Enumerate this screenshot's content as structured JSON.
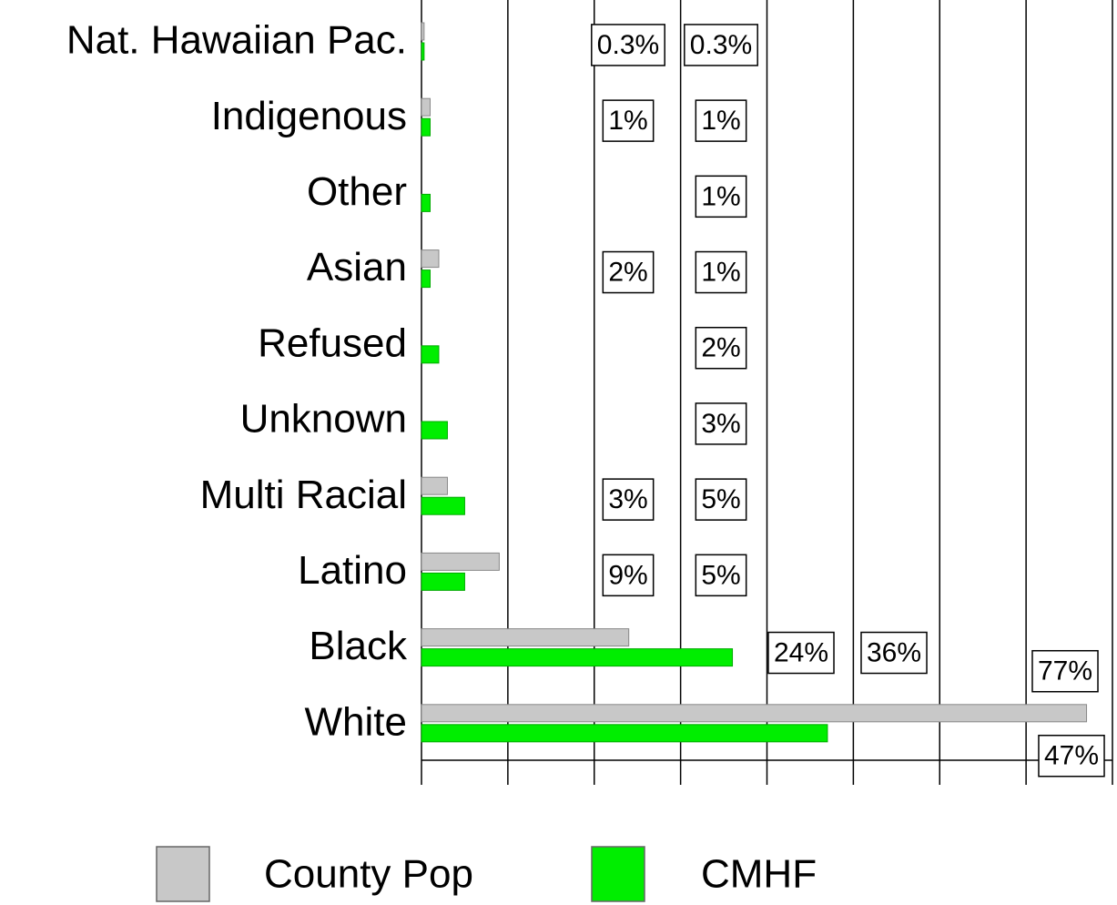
{
  "chart_data": {
    "type": "hbar",
    "categories": [
      "Nat. Hawaiian Pac.",
      "Indigenous",
      "Other",
      "Asian",
      "Refused",
      "Unknown",
      "Multi Racial",
      "Latino",
      "Black",
      "White"
    ],
    "series": [
      {
        "name": "County Pop",
        "color": "#c8c8c8",
        "values": [
          0.3,
          1,
          null,
          2,
          null,
          null,
          3,
          9,
          24,
          77
        ],
        "value_labels": [
          "0.3%",
          "1%",
          null,
          "2%",
          null,
          null,
          "3%",
          "9%",
          "24%",
          "77%"
        ]
      },
      {
        "name": "CMHF",
        "color": "#00ee00",
        "values": [
          0.3,
          1,
          1,
          1,
          2,
          3,
          5,
          5,
          36,
          47
        ],
        "value_labels": [
          "0.3%",
          "1%",
          "1%",
          "1%",
          "2%",
          "3%",
          "5%",
          "5%",
          "36%",
          "47%"
        ]
      }
    ],
    "xlim": [
      0,
      80
    ],
    "xticks": [
      0,
      10,
      20,
      30,
      40,
      50,
      60,
      70,
      80
    ],
    "grid": true,
    "legend": "bottom"
  }
}
